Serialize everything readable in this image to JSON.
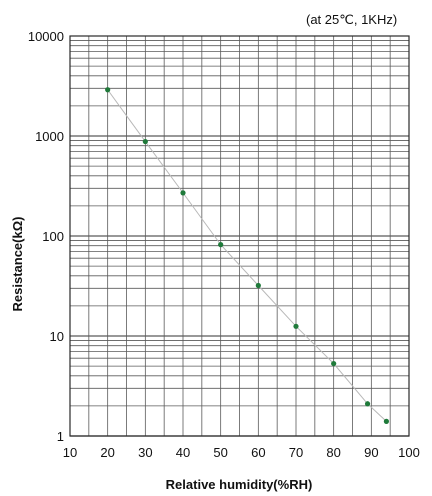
{
  "chart_data": {
    "type": "scatter",
    "annotation": "(at 25℃, 1KHz)",
    "xlabel": "Relative humidity(%RH)",
    "ylabel": "Resistance(kΩ)",
    "xlim": [
      10,
      100
    ],
    "ylim": [
      1,
      10000
    ],
    "yscale": "log",
    "grid": true,
    "x_ticks": [
      "10",
      "20",
      "30",
      "40",
      "50",
      "60",
      "70",
      "80",
      "90",
      "100"
    ],
    "y_ticks": [
      "1",
      "10",
      "100",
      "1000",
      "10000"
    ],
    "series": [
      {
        "x": [
          20,
          30,
          40,
          50,
          60,
          70,
          80,
          89,
          94
        ],
        "y": [
          2900,
          880,
          270,
          82,
          32,
          12.5,
          5.3,
          2.1,
          1.4
        ],
        "trend_line": true
      }
    ],
    "colors": {
      "grid": "#5a5a5a",
      "points": "#1f7a3a",
      "trend": "#b8b8b8"
    }
  }
}
